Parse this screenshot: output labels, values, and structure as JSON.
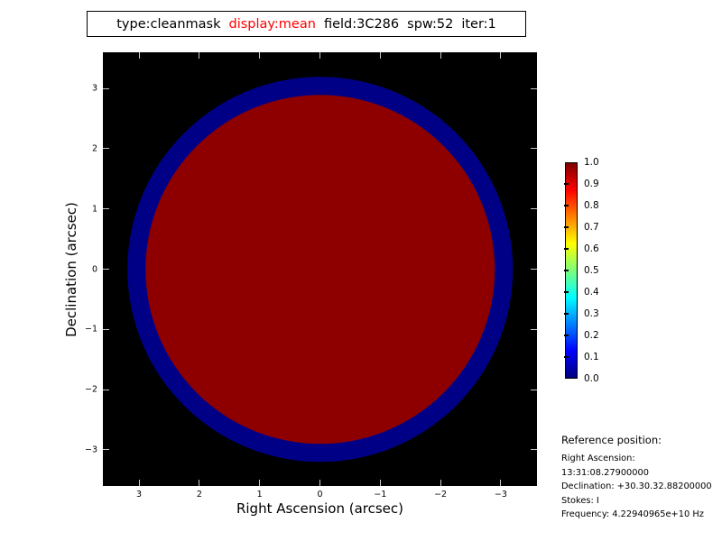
{
  "figure": {
    "background_color": "#ffffff",
    "plot_background_color": "#000000",
    "tick_color_inside_plot": "#c9c9c9"
  },
  "title": {
    "segments": [
      {
        "text": "type:cleanmask",
        "color": "#000000"
      },
      {
        "text": "display:mean",
        "color": "#ff0000"
      },
      {
        "text": "field:3C286",
        "color": "#000000"
      },
      {
        "text": "spw:52",
        "color": "#000000"
      },
      {
        "text": "iter:1",
        "color": "#000000"
      }
    ]
  },
  "chart_data": {
    "type": "heatmap",
    "title": "type:cleanmask display:mean field:3C286 spw:52 iter:1",
    "xlabel": "Right Ascension (arcsec)",
    "ylabel": "Declination (arcsec)",
    "x_axis": {
      "values": [
        3,
        2,
        1,
        0,
        -1,
        -2,
        -3
      ],
      "labels": [
        "3",
        "2",
        "1",
        "0",
        "−1",
        "−2",
        "−3"
      ],
      "range": [
        3.6,
        -3.6
      ]
    },
    "y_axis": {
      "values": [
        3,
        2,
        1,
        0,
        -1,
        -2,
        -3
      ],
      "labels": [
        "3",
        "2",
        "1",
        "0",
        "−1",
        "−2",
        "−3"
      ],
      "range": [
        -3.6,
        3.6
      ]
    },
    "background_value_color": "#000000",
    "regions": [
      {
        "name": "outer-ring",
        "shape": "circle",
        "center_arcsec": [
          0,
          0
        ],
        "radius_arcsec": 3.2,
        "value": 0.05,
        "color": "#000087"
      },
      {
        "name": "inner-disk",
        "shape": "circle",
        "center_arcsec": [
          0,
          0
        ],
        "radius_arcsec": 2.9,
        "value": 1.0,
        "color": "#8e0000"
      }
    ],
    "colorbar": {
      "min": 0.0,
      "max": 1.0,
      "colormap": "jet",
      "tick_labels": [
        "1.0",
        "0.9",
        "0.8",
        "0.7",
        "0.6",
        "0.5",
        "0.4",
        "0.3",
        "0.2",
        "0.1",
        "0.0"
      ],
      "gradient_bottom_to_top": [
        "#00007f",
        "#0000ff",
        "#0080ff",
        "#00ffff",
        "#7dff7a",
        "#ffff00",
        "#ff8000",
        "#ff0000",
        "#7f0000"
      ],
      "legend_position": "right"
    },
    "grid": false
  },
  "reference": {
    "heading": "Reference position:",
    "lines": [
      "Right Ascension: 13:31:08.27900000",
      "Declination: +30.30.32.88200000",
      "Stokes: I",
      "Frequency: 4.22940965e+10 Hz"
    ]
  }
}
